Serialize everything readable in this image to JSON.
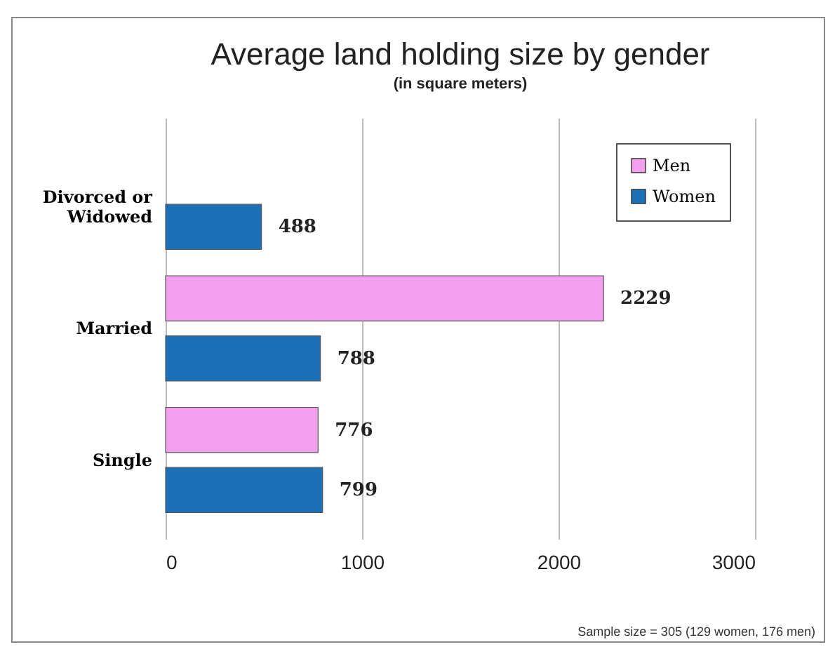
{
  "chart_data": {
    "type": "bar",
    "orientation": "horizontal",
    "title": "Average land holding size by gender",
    "subtitle": "(in square meters)",
    "categories": [
      "Divorced or Widowed",
      "Married",
      "Single"
    ],
    "series": [
      {
        "name": "Men",
        "color": "#f2a0ee",
        "values": [
          null,
          2229,
          776
        ]
      },
      {
        "name": "Women",
        "color": "#1b70b8",
        "values": [
          488,
          788,
          799
        ]
      }
    ],
    "xlim": [
      0,
      3000
    ],
    "xticks": [
      0,
      1000,
      2000,
      3000
    ],
    "grid": "x",
    "legend": "top right",
    "data_labels": true,
    "annotations": [
      "Sample size = 305 (129 women, 176 men)"
    ]
  }
}
